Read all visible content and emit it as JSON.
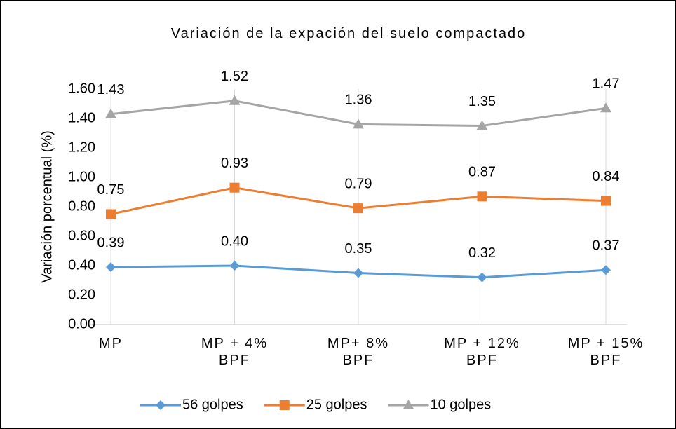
{
  "chart_data": {
    "type": "line",
    "title": "Variación de la expación del suelo compactado",
    "y_label": "Variación porcentual (%)",
    "categories": [
      "MP",
      "MP + 4%\nBPF",
      "MP+ 8%\nBPF",
      "MP + 12%\nBPF",
      "MP + 15%\nBPF"
    ],
    "series": [
      {
        "name": "56 golpes",
        "color": "#5b9bd5",
        "marker": "diamond",
        "values": [
          0.39,
          0.4,
          0.35,
          0.32,
          0.37
        ],
        "value_labels": [
          "0.39",
          "0.40",
          "0.35",
          "0.32",
          "0.37"
        ]
      },
      {
        "name": "25 golpes",
        "color": "#ed7d31",
        "marker": "square",
        "values": [
          0.75,
          0.93,
          0.79,
          0.87,
          0.84
        ],
        "value_labels": [
          "0.75",
          "0.93",
          "0.79",
          "0.87",
          "0.84"
        ]
      },
      {
        "name": "10 golpes",
        "color": "#a5a5a5",
        "marker": "triangle",
        "values": [
          1.43,
          1.52,
          1.36,
          1.35,
          1.47
        ],
        "value_labels": [
          "1.43",
          "1.52",
          "1.36",
          "1.35",
          "1.47"
        ]
      }
    ],
    "ylim": [
      0,
      1.6
    ],
    "yticks": [
      {
        "value": 0,
        "label": "0.00"
      },
      {
        "value": 0.2,
        "label": "0.20"
      },
      {
        "value": 0.4,
        "label": "0.40"
      },
      {
        "value": 0.6,
        "label": "0.60"
      },
      {
        "value": 0.8,
        "label": "0.80"
      },
      {
        "value": 1.0,
        "label": "1.00"
      },
      {
        "value": 1.2,
        "label": "1.20"
      },
      {
        "value": 1.4,
        "label": "1.40"
      },
      {
        "value": 1.6,
        "label": "1.60"
      }
    ],
    "legend": "bottom"
  }
}
